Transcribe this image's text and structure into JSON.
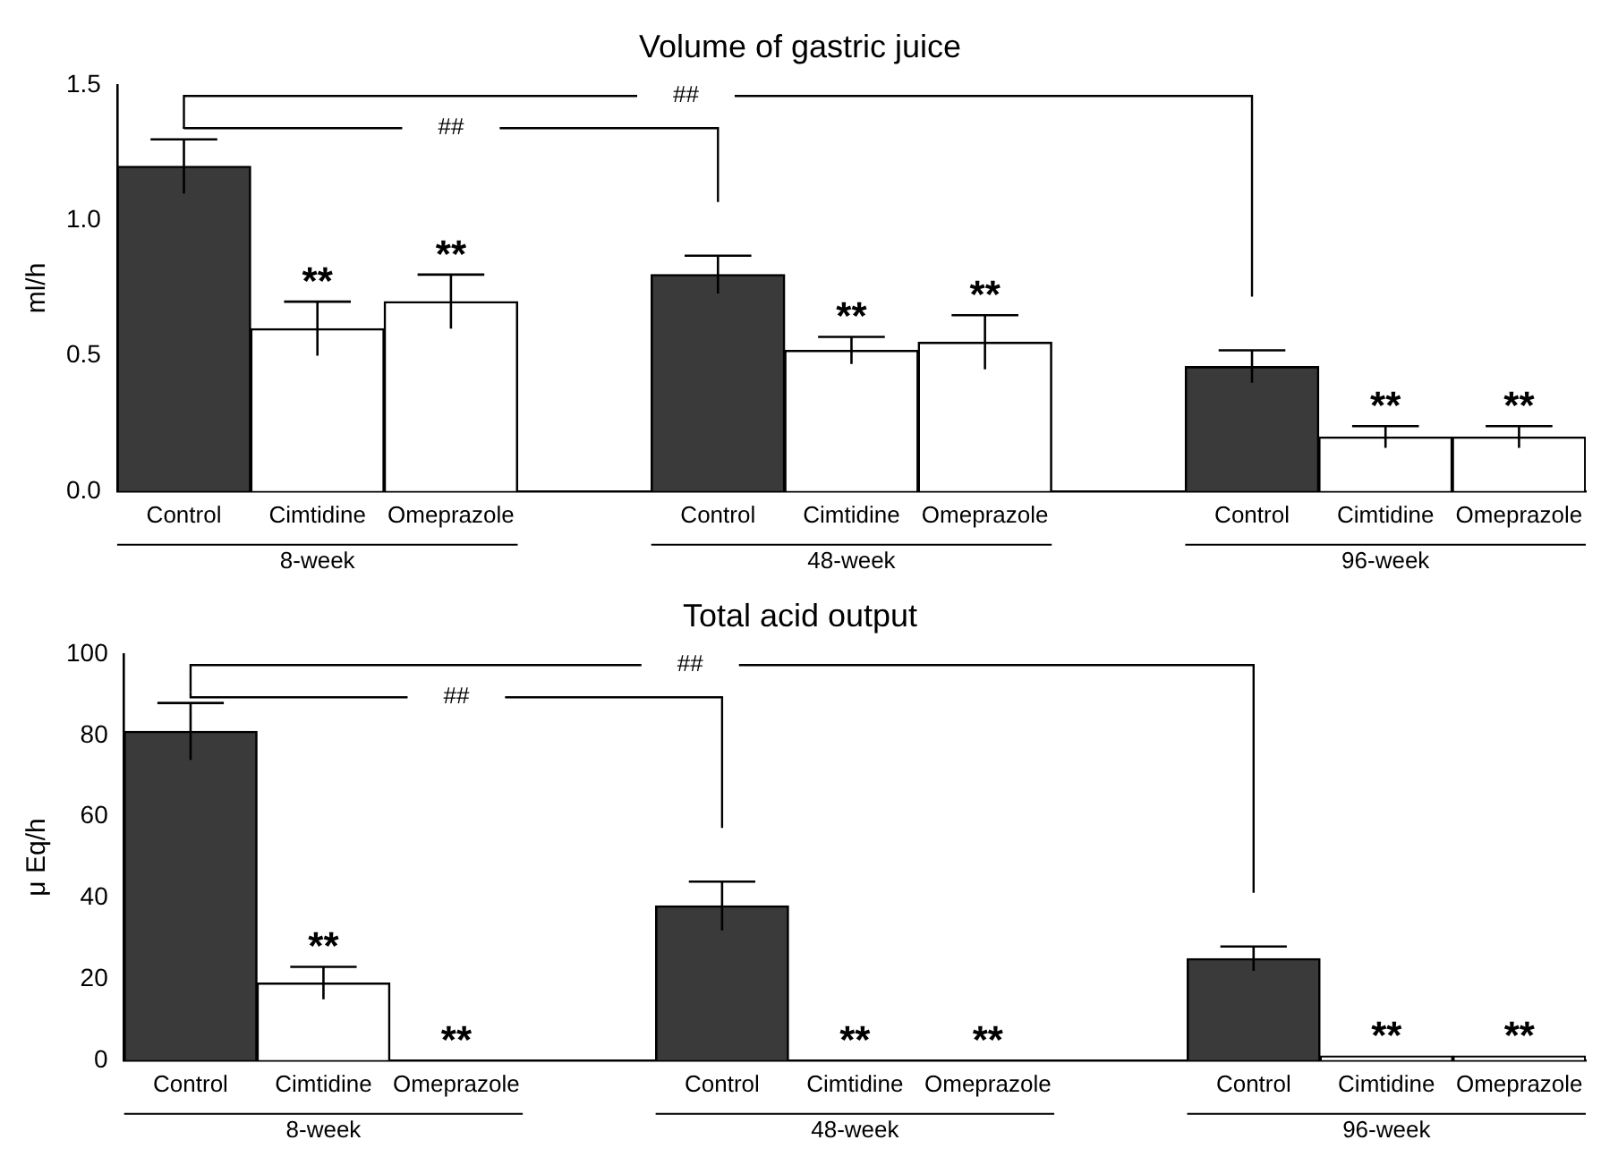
{
  "chart_data": [
    {
      "type": "bar",
      "title": "Volume of gastric juice",
      "ylabel": "ml/h",
      "categories": [
        "Control",
        "Cimtidine",
        "Omeprazole",
        null,
        "Control",
        "Cimtidine",
        "Omeprazole",
        null,
        "Control",
        "Cimtidine",
        "Omeprazole"
      ],
      "values": [
        1.2,
        0.6,
        0.7,
        null,
        0.8,
        0.52,
        0.55,
        null,
        0.46,
        0.2,
        0.2
      ],
      "errors": [
        0.1,
        0.1,
        0.1,
        null,
        0.07,
        0.05,
        0.1,
        null,
        0.06,
        0.04,
        0.04
      ],
      "value_labels": [
        null,
        "**",
        "**",
        null,
        null,
        "**",
        "**",
        null,
        null,
        "**",
        "**"
      ],
      "colors": [
        "#3a3a3a",
        "#ffffff",
        "#ffffff",
        null,
        "#3a3a3a",
        "#ffffff",
        "#ffffff",
        null,
        "#3a3a3a",
        "#ffffff",
        "#ffffff"
      ],
      "ylim": [
        0,
        1.5
      ],
      "yticks": [
        {
          "value": 0,
          "label": "0.0"
        },
        0.5,
        {
          "value": 1,
          "label": "1.0"
        },
        1.5
      ],
      "annotations": [
        "8-week",
        "48-week",
        "96-week",
        "##",
        "##"
      ],
      "grid": false,
      "legend": false
    },
    {
      "type": "bar",
      "title": "Total acid output",
      "ylabel": "μ Eq/h",
      "categories": [
        "Control",
        "Cimtidine",
        "Omeprazole",
        null,
        "Control",
        "Cimtidine",
        "Omeprazole",
        null,
        "Control",
        "Cimtidine",
        "Omeprazole"
      ],
      "values": [
        81,
        19,
        0,
        null,
        38,
        0,
        0,
        null,
        25,
        1,
        1
      ],
      "errors": [
        7,
        4,
        null,
        null,
        6,
        null,
        null,
        null,
        3,
        null,
        null
      ],
      "value_labels": [
        null,
        "**",
        "**",
        null,
        null,
        "**",
        "**",
        null,
        null,
        "**",
        "**"
      ],
      "colors": [
        "#3a3a3a",
        "#ffffff",
        "#ffffff",
        null,
        "#3a3a3a",
        "#ffffff",
        "#ffffff",
        null,
        "#3a3a3a",
        "#ffffff",
        "#ffffff"
      ],
      "ylim": [
        0,
        100
      ],
      "yticks": [
        0,
        20,
        40,
        60,
        80,
        100
      ],
      "annotations": [
        "8-week",
        "48-week",
        "96-week",
        "##",
        "##"
      ],
      "grid": false,
      "legend": false
    }
  ]
}
